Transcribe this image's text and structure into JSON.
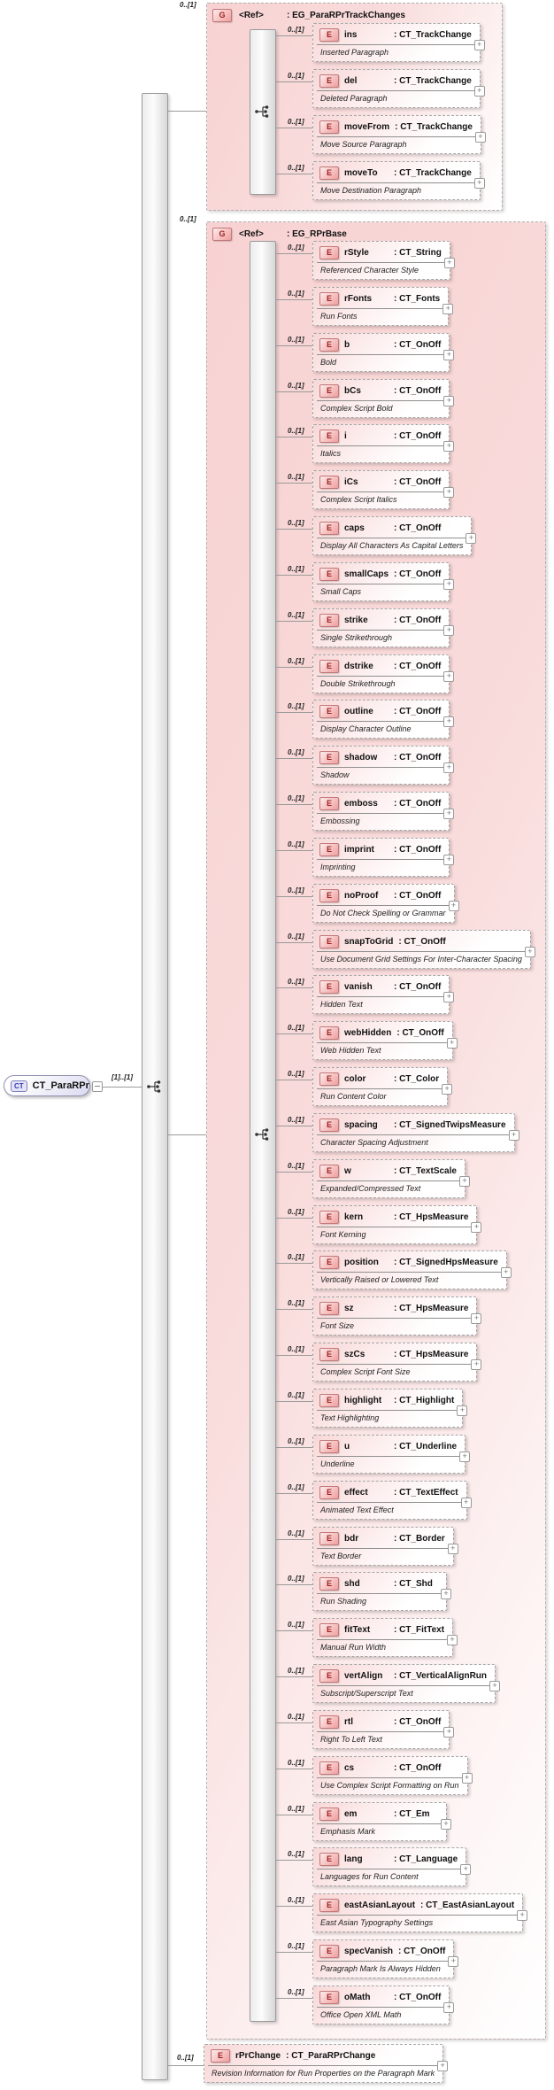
{
  "diagram": {
    "root": {
      "badge": "CT",
      "name": "CT_ParaRPr",
      "sequence_cardinality": "[1]..[1]"
    },
    "groups": [
      {
        "occurrence": "0..[1]",
        "icon": "G",
        "ref": "<Ref>",
        "type_label": ": EG_ParaRPrTrackChanges",
        "sequence_cardinality": "[1]..[1]",
        "elements": [
          {
            "cardinality": "0..[1]",
            "icon": "E",
            "name": "ins",
            "type_label": ": CT_TrackChange",
            "description": "Inserted Paragraph"
          },
          {
            "cardinality": "0..[1]",
            "icon": "E",
            "name": "del",
            "type_label": ": CT_TrackChange",
            "description": "Deleted Paragraph"
          },
          {
            "cardinality": "0..[1]",
            "icon": "E",
            "name": "moveFrom",
            "type_label": ": CT_TrackChange",
            "description": "Move Source Paragraph"
          },
          {
            "cardinality": "0..[1]",
            "icon": "E",
            "name": "moveTo",
            "type_label": ": CT_TrackChange",
            "description": "Move Destination Paragraph"
          }
        ]
      },
      {
        "occurrence": "0..[1]",
        "icon": "G",
        "ref": "<Ref>",
        "type_label": ": EG_RPrBase",
        "sequence_cardinality": "[1]..[1]",
        "elements": [
          {
            "cardinality": "0..[1]",
            "icon": "E",
            "name": "rStyle",
            "type_label": ": CT_String",
            "description": "Referenced Character Style"
          },
          {
            "cardinality": "0..[1]",
            "icon": "E",
            "name": "rFonts",
            "type_label": ": CT_Fonts",
            "description": "Run Fonts"
          },
          {
            "cardinality": "0..[1]",
            "icon": "E",
            "name": "b",
            "type_label": ": CT_OnOff",
            "description": "Bold"
          },
          {
            "cardinality": "0..[1]",
            "icon": "E",
            "name": "bCs",
            "type_label": ": CT_OnOff",
            "description": "Complex Script Bold"
          },
          {
            "cardinality": "0..[1]",
            "icon": "E",
            "name": "i",
            "type_label": ": CT_OnOff",
            "description": "Italics"
          },
          {
            "cardinality": "0..[1]",
            "icon": "E",
            "name": "iCs",
            "type_label": ": CT_OnOff",
            "description": "Complex Script Italics"
          },
          {
            "cardinality": "0..[1]",
            "icon": "E",
            "name": "caps",
            "type_label": ": CT_OnOff",
            "description": "Display All Characters As Capital Letters"
          },
          {
            "cardinality": "0..[1]",
            "icon": "E",
            "name": "smallCaps",
            "type_label": ": CT_OnOff",
            "description": "Small Caps"
          },
          {
            "cardinality": "0..[1]",
            "icon": "E",
            "name": "strike",
            "type_label": ": CT_OnOff",
            "description": "Single Strikethrough"
          },
          {
            "cardinality": "0..[1]",
            "icon": "E",
            "name": "dstrike",
            "type_label": ": CT_OnOff",
            "description": "Double Strikethrough"
          },
          {
            "cardinality": "0..[1]",
            "icon": "E",
            "name": "outline",
            "type_label": ": CT_OnOff",
            "description": "Display Character Outline"
          },
          {
            "cardinality": "0..[1]",
            "icon": "E",
            "name": "shadow",
            "type_label": ": CT_OnOff",
            "description": "Shadow"
          },
          {
            "cardinality": "0..[1]",
            "icon": "E",
            "name": "emboss",
            "type_label": ": CT_OnOff",
            "description": "Embossing"
          },
          {
            "cardinality": "0..[1]",
            "icon": "E",
            "name": "imprint",
            "type_label": ": CT_OnOff",
            "description": "Imprinting"
          },
          {
            "cardinality": "0..[1]",
            "icon": "E",
            "name": "noProof",
            "type_label": ": CT_OnOff",
            "description": "Do Not Check Spelling or Grammar"
          },
          {
            "cardinality": "0..[1]",
            "icon": "E",
            "name": "snapToGrid",
            "type_label": ": CT_OnOff",
            "description": "Use Document Grid Settings For Inter-Character Spacing"
          },
          {
            "cardinality": "0..[1]",
            "icon": "E",
            "name": "vanish",
            "type_label": ": CT_OnOff",
            "description": "Hidden Text"
          },
          {
            "cardinality": "0..[1]",
            "icon": "E",
            "name": "webHidden",
            "type_label": ": CT_OnOff",
            "description": "Web Hidden Text"
          },
          {
            "cardinality": "0..[1]",
            "icon": "E",
            "name": "color",
            "type_label": ": CT_Color",
            "description": "Run Content Color"
          },
          {
            "cardinality": "0..[1]",
            "icon": "E",
            "name": "spacing",
            "type_label": ": CT_SignedTwipsMeasure",
            "description": "Character Spacing Adjustment"
          },
          {
            "cardinality": "0..[1]",
            "icon": "E",
            "name": "w",
            "type_label": ": CT_TextScale",
            "description": "Expanded/Compressed Text"
          },
          {
            "cardinality": "0..[1]",
            "icon": "E",
            "name": "kern",
            "type_label": ": CT_HpsMeasure",
            "description": "Font Kerning"
          },
          {
            "cardinality": "0..[1]",
            "icon": "E",
            "name": "position",
            "type_label": ": CT_SignedHpsMeasure",
            "description": "Vertically Raised or Lowered Text"
          },
          {
            "cardinality": "0..[1]",
            "icon": "E",
            "name": "sz",
            "type_label": ": CT_HpsMeasure",
            "description": "Font Size"
          },
          {
            "cardinality": "0..[1]",
            "icon": "E",
            "name": "szCs",
            "type_label": ": CT_HpsMeasure",
            "description": "Complex Script Font Size"
          },
          {
            "cardinality": "0..[1]",
            "icon": "E",
            "name": "highlight",
            "type_label": ": CT_Highlight",
            "description": "Text Highlighting"
          },
          {
            "cardinality": "0..[1]",
            "icon": "E",
            "name": "u",
            "type_label": ": CT_Underline",
            "description": "Underline"
          },
          {
            "cardinality": "0..[1]",
            "icon": "E",
            "name": "effect",
            "type_label": ": CT_TextEffect",
            "description": "Animated Text Effect"
          },
          {
            "cardinality": "0..[1]",
            "icon": "E",
            "name": "bdr",
            "type_label": ": CT_Border",
            "description": "Text Border"
          },
          {
            "cardinality": "0..[1]",
            "icon": "E",
            "name": "shd",
            "type_label": ": CT_Shd",
            "description": "Run Shading"
          },
          {
            "cardinality": "0..[1]",
            "icon": "E",
            "name": "fitText",
            "type_label": ": CT_FitText",
            "description": "Manual Run Width"
          },
          {
            "cardinality": "0..[1]",
            "icon": "E",
            "name": "vertAlign",
            "type_label": ": CT_VerticalAlignRun",
            "description": "Subscript/Superscript Text"
          },
          {
            "cardinality": "0..[1]",
            "icon": "E",
            "name": "rtl",
            "type_label": ": CT_OnOff",
            "description": "Right To Left Text"
          },
          {
            "cardinality": "0..[1]",
            "icon": "E",
            "name": "cs",
            "type_label": ": CT_OnOff",
            "description": "Use Complex Script Formatting on Run"
          },
          {
            "cardinality": "0..[1]",
            "icon": "E",
            "name": "em",
            "type_label": ": CT_Em",
            "description": "Emphasis Mark"
          },
          {
            "cardinality": "0..[1]",
            "icon": "E",
            "name": "lang",
            "type_label": ": CT_Language",
            "description": "Languages for Run Content"
          },
          {
            "cardinality": "0..[1]",
            "icon": "E",
            "name": "eastAsianLayout",
            "type_label": ": CT_EastAsianLayout",
            "description": "East Asian Typography Settings"
          },
          {
            "cardinality": "0..[1]",
            "icon": "E",
            "name": "specVanish",
            "type_label": ": CT_OnOff",
            "description": "Paragraph Mark Is Always Hidden"
          },
          {
            "cardinality": "0..[1]",
            "icon": "E",
            "name": "oMath",
            "type_label": ": CT_OnOff",
            "description": "Office Open XML Math"
          }
        ]
      }
    ],
    "trailing_element": {
      "cardinality": "0..[1]",
      "icon": "E",
      "name": "rPrChange",
      "type_label": ": CT_ParaRPrChange",
      "description": "Revision Information for Run Properties on the Paragraph Mark"
    }
  }
}
